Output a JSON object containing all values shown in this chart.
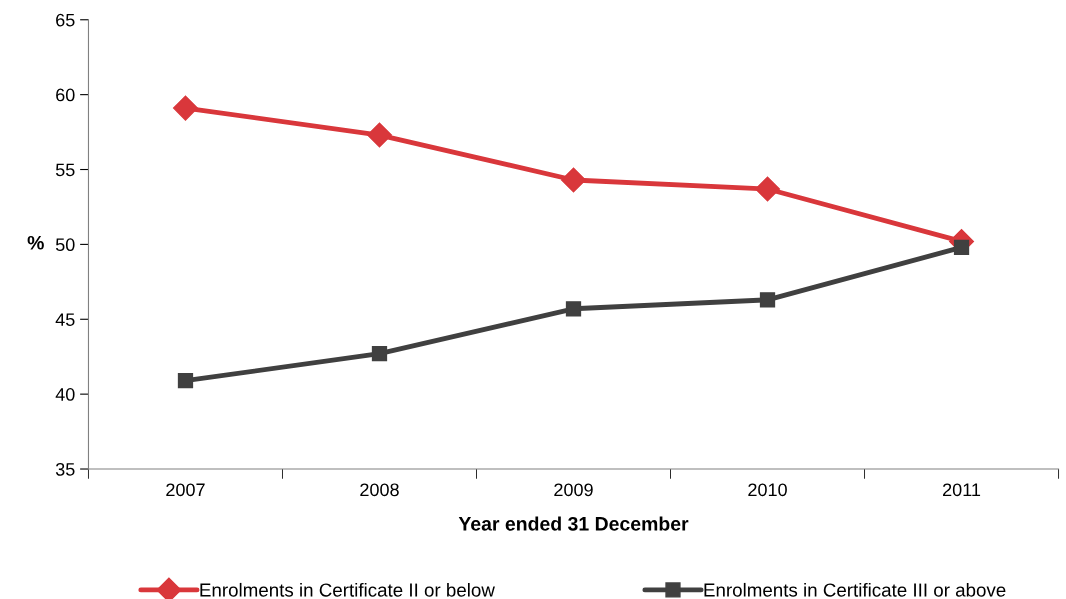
{
  "chart_data": {
    "type": "line",
    "xlabel": "Year ended 31 December",
    "ylabel": "%",
    "categories": [
      "2007",
      "2008",
      "2009",
      "2010",
      "2011"
    ],
    "series": [
      {
        "name": "Enrolments in Certificate II or below",
        "color": "#d9373b",
        "marker": "diamond",
        "values": [
          59.1,
          57.3,
          54.3,
          53.7,
          50.2
        ]
      },
      {
        "name": "Enrolments in Certificate III or above",
        "color": "#404040",
        "marker": "square",
        "values": [
          40.9,
          42.7,
          45.7,
          46.3,
          49.8
        ]
      }
    ],
    "ylim": [
      35,
      65
    ],
    "yticks": [
      35,
      40,
      45,
      50,
      55,
      60,
      65
    ],
    "grid": false,
    "legend": "bottom",
    "line_style": "solid"
  }
}
